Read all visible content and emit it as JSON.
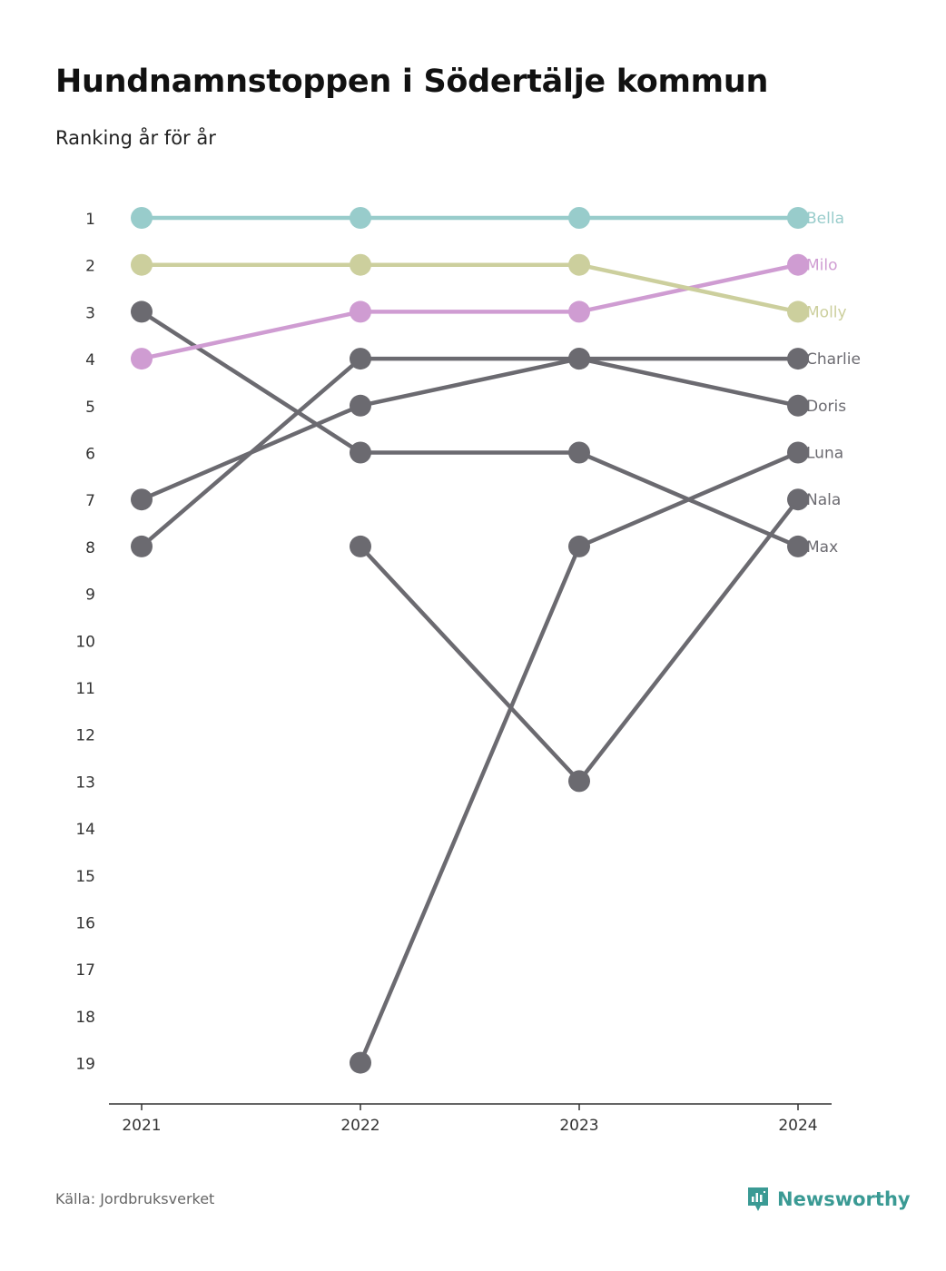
{
  "title": "Hundnamnstoppen i Södertälje kommun",
  "subtitle": "Ranking år för år",
  "source": "Källa: Jordbruksverket",
  "brand": "Newsworthy",
  "colors": {
    "bella": "#98cccb",
    "molly": "#cccf9d",
    "milo": "#cf9cd2",
    "other": "#6b6a70",
    "brand": "#3a9a94"
  },
  "chart_data": {
    "type": "line",
    "subtype": "bump",
    "title": "Hundnamnstoppen i Södertälje kommun",
    "subtitle": "Ranking år för år",
    "x": [
      "2021",
      "2022",
      "2023",
      "2024"
    ],
    "y_ticks": [
      1,
      2,
      3,
      4,
      5,
      6,
      7,
      8,
      9,
      10,
      11,
      12,
      13,
      14,
      15,
      16,
      17,
      18,
      19
    ],
    "y_reversed": true,
    "ylim": [
      1,
      19
    ],
    "grid": false,
    "series": [
      {
        "name": "Bella",
        "color": "#98cccb",
        "values": [
          1,
          1,
          1,
          1
        ]
      },
      {
        "name": "Milo",
        "color": "#cf9cd2",
        "values": [
          4,
          3,
          3,
          2
        ]
      },
      {
        "name": "Molly",
        "color": "#cccf9d",
        "values": [
          2,
          2,
          2,
          3
        ]
      },
      {
        "name": "Charlie",
        "color": "#6b6a70",
        "values": [
          8,
          4,
          4,
          4
        ]
      },
      {
        "name": "Doris",
        "color": "#6b6a70",
        "values": [
          7,
          5,
          4,
          5
        ]
      },
      {
        "name": "Luna",
        "color": "#6b6a70",
        "values": [
          null,
          19,
          8,
          6
        ]
      },
      {
        "name": "Nala",
        "color": "#6b6a70",
        "values": [
          null,
          8,
          13,
          7
        ]
      },
      {
        "name": "Max",
        "color": "#6b6a70",
        "values": [
          3,
          6,
          6,
          8
        ]
      }
    ]
  }
}
